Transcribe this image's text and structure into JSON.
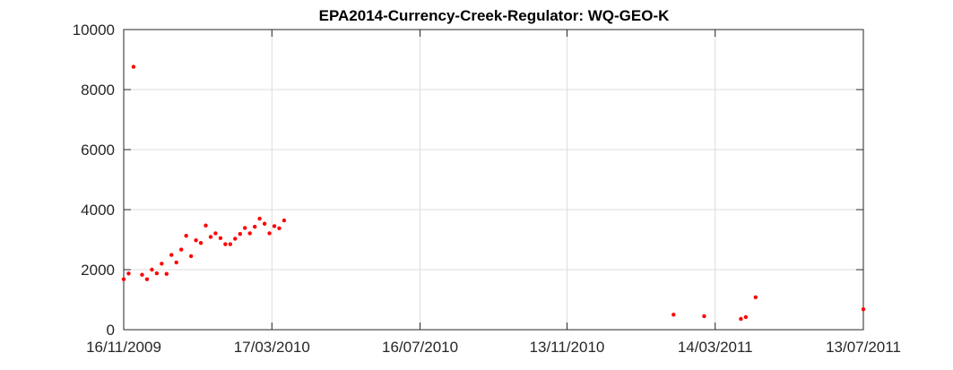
{
  "chart_data": {
    "type": "scatter",
    "title": "EPA2014-Currency-Creek-Regulator: WQ-GEO-K",
    "xlabel": "",
    "ylabel": "",
    "x_axis_type": "date",
    "xlim": [
      "2009-11-16",
      "2011-07-13"
    ],
    "ylim": [
      0,
      10000
    ],
    "x_ticks": [
      "2009-11-16",
      "2010-03-17",
      "2010-07-16",
      "2010-11-13",
      "2011-03-14",
      "2011-07-13"
    ],
    "x_tick_labels": [
      "16/11/2009",
      "17/03/2010",
      "16/07/2010",
      "13/11/2010",
      "14/03/2011",
      "13/07/2011"
    ],
    "y_ticks": [
      0,
      2000,
      4000,
      6000,
      8000,
      10000
    ],
    "y_tick_labels": [
      "0",
      "2000",
      "4000",
      "6000",
      "8000",
      "10000"
    ],
    "grid": true,
    "legend": "none",
    "marker_color": "#ff0000",
    "series": [
      {
        "points": [
          {
            "x": "2009-11-16",
            "y": 1680
          },
          {
            "x": "2009-11-20",
            "y": 1870
          },
          {
            "x": "2009-11-24",
            "y": 8760
          },
          {
            "x": "2009-12-01",
            "y": 1830
          },
          {
            "x": "2009-12-05",
            "y": 1680
          },
          {
            "x": "2009-12-09",
            "y": 2000
          },
          {
            "x": "2009-12-13",
            "y": 1880
          },
          {
            "x": "2009-12-17",
            "y": 2200
          },
          {
            "x": "2009-12-21",
            "y": 1860
          },
          {
            "x": "2009-12-25",
            "y": 2490
          },
          {
            "x": "2009-12-29",
            "y": 2240
          },
          {
            "x": "2010-01-02",
            "y": 2670
          },
          {
            "x": "2010-01-06",
            "y": 3130
          },
          {
            "x": "2010-01-10",
            "y": 2450
          },
          {
            "x": "2010-01-14",
            "y": 2980
          },
          {
            "x": "2010-01-18",
            "y": 2890
          },
          {
            "x": "2010-01-22",
            "y": 3470
          },
          {
            "x": "2010-01-26",
            "y": 3090
          },
          {
            "x": "2010-01-30",
            "y": 3210
          },
          {
            "x": "2010-02-03",
            "y": 3050
          },
          {
            "x": "2010-02-07",
            "y": 2850
          },
          {
            "x": "2010-02-11",
            "y": 2850
          },
          {
            "x": "2010-02-15",
            "y": 3030
          },
          {
            "x": "2010-02-19",
            "y": 3190
          },
          {
            "x": "2010-02-23",
            "y": 3390
          },
          {
            "x": "2010-02-27",
            "y": 3210
          },
          {
            "x": "2010-03-03",
            "y": 3430
          },
          {
            "x": "2010-03-07",
            "y": 3700
          },
          {
            "x": "2010-03-11",
            "y": 3530
          },
          {
            "x": "2010-03-15",
            "y": 3210
          },
          {
            "x": "2010-03-19",
            "y": 3450
          },
          {
            "x": "2010-03-23",
            "y": 3380
          },
          {
            "x": "2010-03-27",
            "y": 3640
          },
          {
            "x": "2011-02-08",
            "y": 500
          },
          {
            "x": "2011-03-05",
            "y": 450
          },
          {
            "x": "2011-04-04",
            "y": 360
          },
          {
            "x": "2011-04-08",
            "y": 420
          },
          {
            "x": "2011-04-16",
            "y": 1080
          },
          {
            "x": "2011-07-13",
            "y": 680
          }
        ]
      }
    ]
  }
}
